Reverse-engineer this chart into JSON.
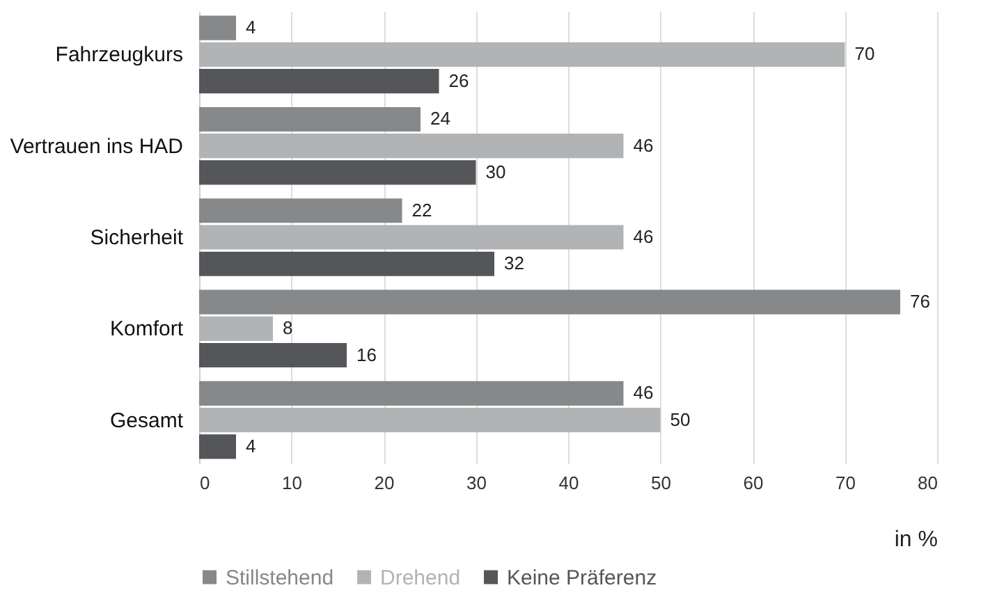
{
  "chart_data": {
    "type": "bar",
    "orientation": "horizontal",
    "categories": [
      "Fahrzeugkurs",
      "Vertrauen ins HAD",
      "Sicherheit",
      "Komfort",
      "Gesamt"
    ],
    "series": [
      {
        "name": "Stillstehend",
        "color": "#86888a",
        "values": [
          4,
          24,
          22,
          76,
          46
        ]
      },
      {
        "name": "Drehend",
        "color": "#b1b3b5",
        "values": [
          70,
          46,
          46,
          8,
          50
        ]
      },
      {
        "name": "Keine Präferenz",
        "color": "#54565a",
        "values": [
          26,
          30,
          32,
          16,
          4
        ]
      }
    ],
    "xlabel": "in %",
    "xlim": [
      0,
      80
    ],
    "xticks": [
      0,
      10,
      20,
      30,
      40,
      50,
      60,
      70,
      80
    ],
    "grid": "x",
    "legend": "bottom left",
    "data_labels": true
  }
}
